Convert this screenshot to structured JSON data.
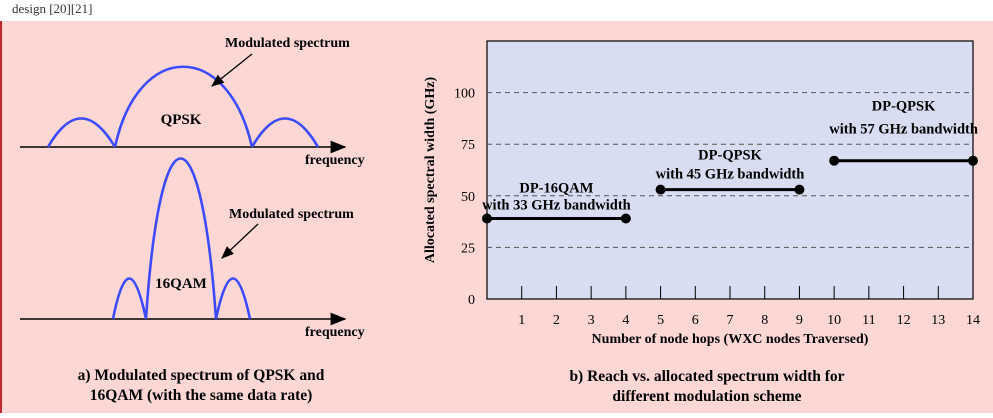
{
  "page": {
    "header_fragment": "design [20][21]",
    "panel_bg": "#fcd7d4",
    "plot_bg": "#d8ddf2",
    "spectrum_color": "#3c4bff",
    "accent_red": "#c0282e"
  },
  "left_panel": {
    "top": {
      "modulation_label": "QPSK",
      "annotation": "Modulated spectrum",
      "axis_label": "frequency"
    },
    "bottom": {
      "modulation_label": "16QAM",
      "annotation": "Modulated spectrum",
      "axis_label": "frequency"
    },
    "caption_line1": "a) Modulated spectrum of QPSK and",
    "caption_line2": "16QAM (with the same data rate)"
  },
  "right_panel": {
    "caption_line1": "b) Reach vs. allocated spectrum width for",
    "caption_line2": "different modulation scheme"
  },
  "chart_data": {
    "type": "line",
    "xlabel": "Number of  node hops (WXC nodes Traversed)",
    "ylabel": "Allocated spectral width (GHz)",
    "xlim": [
      0,
      14
    ],
    "ylim": [
      0,
      125
    ],
    "x_ticks": [
      "1",
      "2",
      "3",
      "4",
      "5",
      "6",
      "7",
      "8",
      "9",
      "10",
      "11",
      "12",
      "13",
      "14"
    ],
    "y_ticks": [
      "0",
      "25",
      "50",
      "75",
      "100"
    ],
    "grid": "dashed horizontal",
    "series": [
      {
        "label_line1": "DP-16QAM",
        "label_line2": "with 33 GHz bandwidth",
        "x": [
          0,
          4
        ],
        "y": [
          39,
          39
        ]
      },
      {
        "label_line1": "DP-QPSK",
        "label_line2": "with 45 GHz bandwidth",
        "x": [
          5,
          9
        ],
        "y": [
          53,
          53
        ]
      },
      {
        "label_line1": "DP-QPSK",
        "label_line2": "with 57 GHz bandwidth",
        "x": [
          10,
          14
        ],
        "y": [
          67,
          67
        ]
      }
    ]
  }
}
